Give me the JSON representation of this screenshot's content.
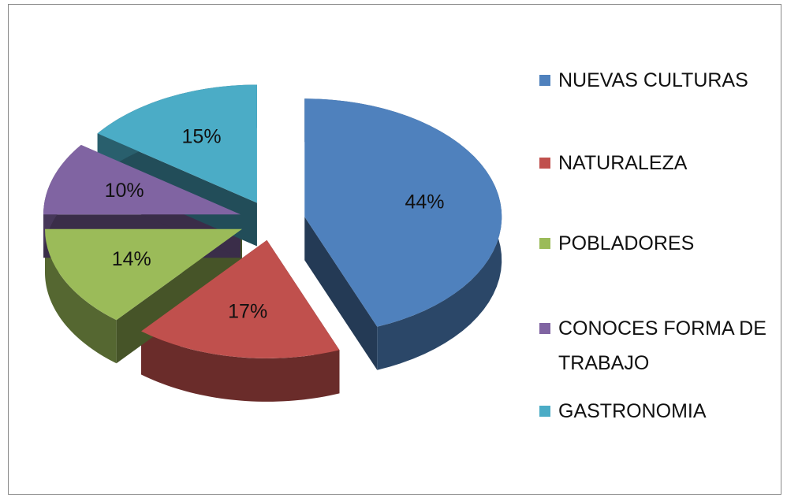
{
  "chart_data": {
    "type": "pie3d",
    "categories": [
      "NUEVAS CULTURAS",
      "NATURALEZA",
      "POBLADORES",
      "CONOCES FORMA DE TRABAJO",
      "GASTRONOMIA"
    ],
    "values": [
      44,
      17,
      14,
      10,
      15
    ],
    "value_labels": [
      "44%",
      "17%",
      "14%",
      "10%",
      "15%"
    ],
    "colors": [
      "#4f81bd",
      "#c0504d",
      "#9bbb59",
      "#8064a2",
      "#4bacc6"
    ],
    "legend": "right"
  }
}
